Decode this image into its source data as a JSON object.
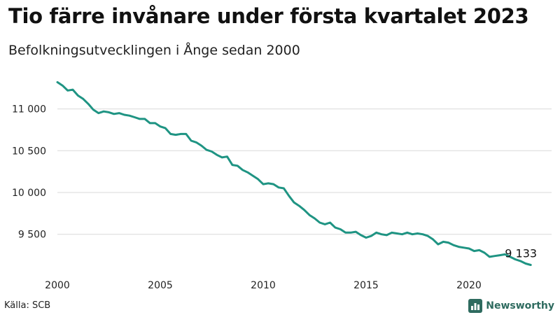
{
  "title": "Tio färre invånare under första kvartalet 2023",
  "subtitle": "Befolkningsutvecklingen i Ånge sedan 2000",
  "source": "Källa: SCB",
  "brand": {
    "name": "Newsworthy",
    "icon": "bar-chart-logo-icon",
    "color": "#2e6b5f"
  },
  "chart_data": {
    "type": "line",
    "title": "Tio färre invånare under första kvartalet 2023",
    "subtitle": "Befolkningsutvecklingen i Ånge sedan 2000",
    "xlabel": "",
    "ylabel": "",
    "xlim": [
      2000,
      2023.25
    ],
    "ylim": [
      9300,
      11350
    ],
    "x_ticks": [
      2000,
      2005,
      2010,
      2015,
      2020
    ],
    "x_tick_labels": [
      "2000",
      "2005",
      "2010",
      "2015",
      "2020"
    ],
    "y_ticks": [
      9500,
      10000,
      10500,
      11000
    ],
    "y_tick_labels": [
      "9 500",
      "10 000",
      "10 500",
      "11 000"
    ],
    "grid": "horizontal",
    "line_color": "#1f9483",
    "end_label": "9 133",
    "series": [
      {
        "x": [
          2000.0,
          2000.25,
          2000.5,
          2000.75,
          2001.0,
          2001.25,
          2001.5,
          2001.75,
          2002.0,
          2002.25,
          2002.5,
          2002.75,
          2003.0,
          2003.25,
          2003.5,
          2003.75,
          2004.0,
          2004.25,
          2004.5,
          2004.75,
          2005.0,
          2005.25,
          2005.5,
          2005.75,
          2006.0,
          2006.25,
          2006.5,
          2006.75,
          2007.0,
          2007.25,
          2007.5,
          2007.75,
          2008.0,
          2008.25,
          2008.5,
          2008.75,
          2009.0,
          2009.25,
          2009.5,
          2009.75,
          2010.0,
          2010.25,
          2010.5,
          2010.75,
          2011.0,
          2011.25,
          2011.5,
          2011.75,
          2012.0,
          2012.25,
          2012.5,
          2012.75,
          2013.0,
          2013.25,
          2013.5,
          2013.75,
          2014.0,
          2014.25,
          2014.5,
          2014.75,
          2015.0,
          2015.25,
          2015.5,
          2015.75,
          2016.0,
          2016.25,
          2016.5,
          2016.75,
          2017.0,
          2017.25,
          2017.5,
          2017.75,
          2018.0,
          2018.25,
          2018.5,
          2018.75,
          2019.0,
          2019.25,
          2019.5,
          2019.75,
          2020.0,
          2020.25,
          2020.5,
          2020.75,
          2021.0,
          2021.25,
          2021.5,
          2021.75,
          2022.0,
          2022.25,
          2022.5,
          2022.75,
          2023.0
        ],
        "y": [
          11320,
          11280,
          11220,
          11230,
          11160,
          11120,
          11060,
          10990,
          10950,
          10970,
          10960,
          10940,
          10950,
          10930,
          10920,
          10900,
          10880,
          10880,
          10830,
          10830,
          10790,
          10770,
          10700,
          10690,
          10700,
          10700,
          10620,
          10600,
          10560,
          10510,
          10490,
          10450,
          10420,
          10430,
          10330,
          10320,
          10270,
          10240,
          10200,
          10160,
          10100,
          10110,
          10100,
          10060,
          10050,
          9960,
          9880,
          9840,
          9790,
          9730,
          9690,
          9640,
          9620,
          9640,
          9580,
          9560,
          9520,
          9520,
          9530,
          9490,
          9460,
          9480,
          9520,
          9500,
          9490,
          9520,
          9510,
          9500,
          9520,
          9500,
          9510,
          9500,
          9480,
          9440,
          9380,
          9410,
          9400,
          9370,
          9350,
          9340,
          9330,
          9300,
          9310,
          9280,
          9230,
          9240,
          9250,
          9260,
          9230,
          9200,
          9180,
          9150,
          9133
        ]
      }
    ]
  }
}
